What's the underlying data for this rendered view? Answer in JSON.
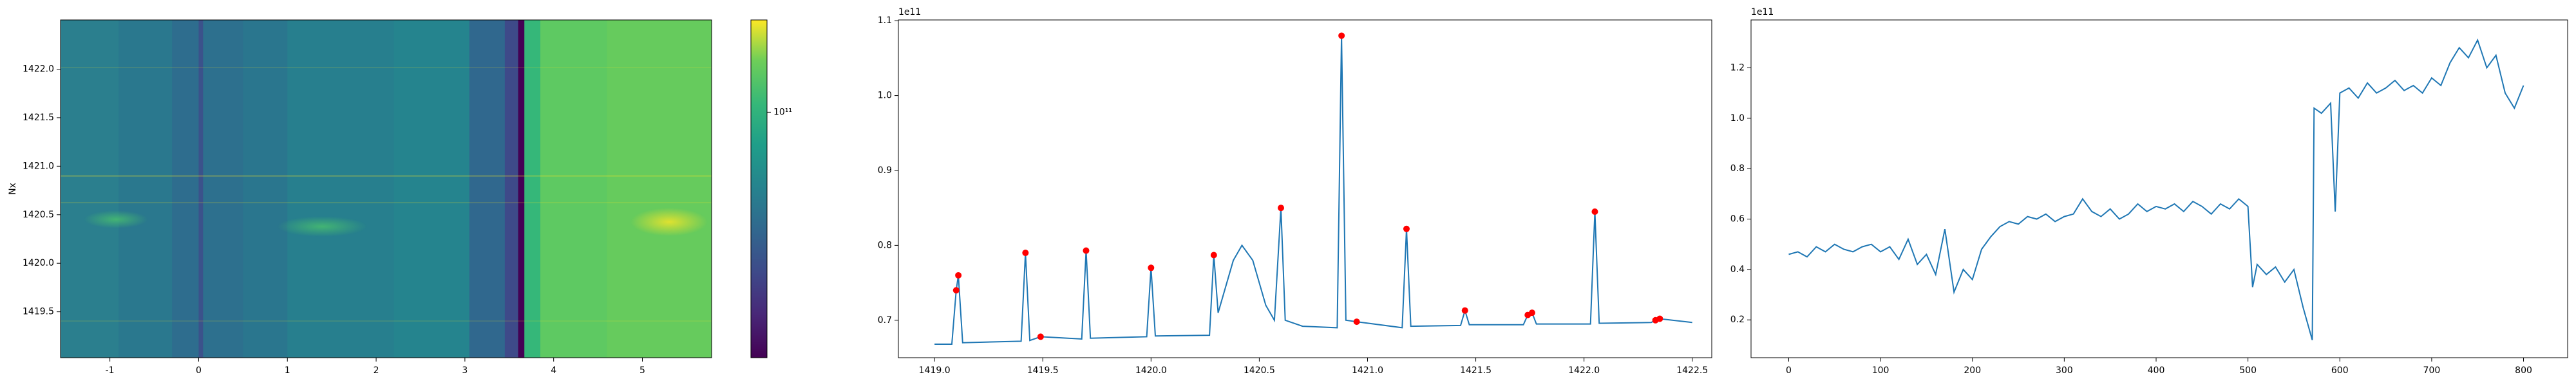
{
  "chart_data": [
    {
      "type": "heatmap",
      "ylabel": "Nx",
      "xlim": [
        -1.556,
        5.78
      ],
      "ylim": [
        1419.027,
        1422.507
      ],
      "xticks": [
        -1,
        0,
        1,
        2,
        3,
        4,
        5
      ],
      "yticks": [
        {
          "value": 1419.5,
          "label": "1419.5"
        },
        {
          "value": 1420,
          "label": "1420.0"
        },
        {
          "value": 1420.5,
          "label": "1420.5"
        },
        {
          "value": 1421,
          "label": "1421.0"
        },
        {
          "value": 1421.5,
          "label": "1421.5"
        },
        {
          "value": 1422,
          "label": "1422.0"
        }
      ],
      "bands": [
        {
          "x0": -1.556,
          "x1": -0.9,
          "color": "#2b7f8e"
        },
        {
          "x0": -0.9,
          "x1": -0.3,
          "color": "#2a788e"
        },
        {
          "x0": -0.3,
          "x1": 0.0,
          "color": "#2e6d8e"
        },
        {
          "x0": 0.0,
          "x1": 0.05,
          "color": "#3b528b"
        },
        {
          "x0": 0.05,
          "x1": 0.5,
          "color": "#2d708e"
        },
        {
          "x0": 0.5,
          "x1": 1.0,
          "color": "#2a768e"
        },
        {
          "x0": 1.0,
          "x1": 2.2,
          "color": "#277f8e"
        },
        {
          "x0": 2.2,
          "x1": 3.05,
          "color": "#25848e"
        },
        {
          "x0": 3.05,
          "x1": 3.45,
          "color": "#30688e"
        },
        {
          "x0": 3.45,
          "x1": 3.6,
          "color": "#3e4a89"
        },
        {
          "x0": 3.6,
          "x1": 3.67,
          "color": "#440154"
        },
        {
          "x0": 3.67,
          "x1": 3.85,
          "color": "#35b779"
        },
        {
          "x0": 3.85,
          "x1": 4.6,
          "color": "#5ec962"
        },
        {
          "x0": 4.6,
          "x1": 5.78,
          "color": "#66cb5d"
        }
      ],
      "colorbar": {
        "scale": "log",
        "clim": [
          45000000000,
          135000000000
        ],
        "ticks": [
          {
            "value": 100000000000,
            "label": "10¹¹"
          }
        ]
      }
    },
    {
      "type": "line",
      "offset_label": "1e11",
      "xlim": [
        1418.833,
        1422.59
      ],
      "ylim": [
        0.65,
        1.101
      ],
      "xticks": [
        {
          "value": 1419,
          "label": "1419.0"
        },
        1419.5,
        {
          "value": 1420,
          "label": "1420.0"
        },
        1420.5,
        {
          "value": 1421,
          "label": "1421.0"
        },
        1421.5,
        {
          "value": 1422,
          "label": "1422.0"
        },
        1422.5
      ],
      "yticks": [
        0.7,
        0.8,
        0.9,
        {
          "value": 1.0,
          "label": "1.0"
        },
        1.1
      ],
      "series": [
        {
          "color": "#1f77b4",
          "x": [
            1419.0,
            1419.08,
            1419.1,
            1419.11,
            1419.13,
            1419.4,
            1419.42,
            1419.44,
            1419.49,
            1419.68,
            1419.7,
            1419.72,
            1419.98,
            1420.0,
            1420.02,
            1420.27,
            1420.29,
            1420.31,
            1420.38,
            1420.42,
            1420.47,
            1420.53,
            1420.57,
            1420.6,
            1420.62,
            1420.7,
            1420.86,
            1420.88,
            1420.9,
            1420.95,
            1421.16,
            1421.18,
            1421.2,
            1421.43,
            1421.45,
            1421.47,
            1421.72,
            1421.74,
            1421.76,
            1421.78,
            1422.03,
            1422.05,
            1422.07,
            1422.31,
            1422.33,
            1422.35,
            1422.5
          ],
          "values": [
            0.668,
            0.668,
            0.74,
            0.76,
            0.67,
            0.672,
            0.79,
            0.673,
            0.678,
            0.675,
            0.793,
            0.676,
            0.678,
            0.77,
            0.679,
            0.68,
            0.787,
            0.71,
            0.78,
            0.8,
            0.78,
            0.72,
            0.7,
            0.85,
            0.7,
            0.692,
            0.69,
            1.08,
            0.7,
            0.698,
            0.69,
            0.822,
            0.692,
            0.693,
            0.713,
            0.694,
            0.694,
            0.707,
            0.71,
            0.695,
            0.695,
            0.845,
            0.696,
            0.697,
            0.7,
            0.702,
            0.697
          ]
        }
      ],
      "markers": {
        "color": "#ff0000",
        "x": [
          1419.1,
          1419.11,
          1419.42,
          1419.49,
          1419.7,
          1420.0,
          1420.29,
          1420.6,
          1420.88,
          1420.95,
          1421.18,
          1421.45,
          1421.74,
          1421.76,
          1422.05,
          1422.33,
          1422.35
        ],
        "values": [
          0.74,
          0.76,
          0.79,
          0.678,
          0.793,
          0.77,
          0.787,
          0.85,
          1.08,
          0.698,
          0.822,
          0.713,
          0.707,
          0.71,
          0.845,
          0.7,
          0.702
        ]
      }
    },
    {
      "type": "line",
      "offset_label": "1e11",
      "xlim": [
        -41,
        848
      ],
      "ylim": [
        0.05,
        1.39
      ],
      "xticks": [
        0,
        100,
        200,
        300,
        400,
        500,
        600,
        700,
        800
      ],
      "yticks": [
        0.2,
        0.4,
        0.6,
        0.8,
        {
          "value": 1.0,
          "label": "1.0"
        },
        1.2
      ],
      "series": [
        {
          "color": "#1f77b4",
          "x": [
            0,
            10,
            20,
            30,
            40,
            50,
            60,
            70,
            80,
            90,
            100,
            110,
            120,
            130,
            140,
            150,
            160,
            170,
            180,
            190,
            200,
            210,
            220,
            230,
            240,
            250,
            260,
            270,
            280,
            290,
            300,
            310,
            320,
            330,
            340,
            350,
            360,
            370,
            380,
            390,
            400,
            410,
            420,
            430,
            440,
            450,
            460,
            470,
            480,
            490,
            500,
            505,
            510,
            520,
            530,
            540,
            550,
            560,
            570,
            572,
            580,
            590,
            595,
            600,
            610,
            620,
            630,
            640,
            650,
            660,
            670,
            680,
            690,
            700,
            710,
            720,
            730,
            740,
            750,
            760,
            770,
            780,
            790,
            800
          ],
          "values": [
            0.46,
            0.47,
            0.45,
            0.49,
            0.47,
            0.5,
            0.48,
            0.47,
            0.49,
            0.5,
            0.47,
            0.49,
            0.44,
            0.52,
            0.42,
            0.46,
            0.38,
            0.56,
            0.31,
            0.4,
            0.36,
            0.48,
            0.53,
            0.57,
            0.59,
            0.58,
            0.61,
            0.6,
            0.62,
            0.59,
            0.61,
            0.62,
            0.68,
            0.63,
            0.61,
            0.64,
            0.6,
            0.62,
            0.66,
            0.63,
            0.65,
            0.64,
            0.66,
            0.63,
            0.67,
            0.65,
            0.62,
            0.66,
            0.64,
            0.68,
            0.65,
            0.33,
            0.42,
            0.38,
            0.41,
            0.35,
            0.4,
            0.25,
            0.12,
            1.04,
            1.02,
            1.06,
            0.63,
            1.1,
            1.12,
            1.08,
            1.14,
            1.1,
            1.12,
            1.15,
            1.11,
            1.13,
            1.1,
            1.16,
            1.13,
            1.22,
            1.28,
            1.24,
            1.31,
            1.2,
            1.25,
            1.1,
            1.04,
            1.13
          ]
        }
      ]
    }
  ]
}
